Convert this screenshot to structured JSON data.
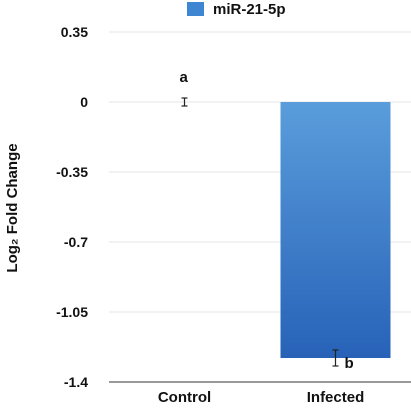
{
  "chart_data": {
    "type": "bar",
    "categories": [
      "Control",
      "Infected"
    ],
    "series": [
      {
        "name": "miR-21-5p",
        "values": [
          0,
          -1.28
        ],
        "error": [
          0.02,
          0.04
        ],
        "significance": [
          "a",
          "b"
        ]
      }
    ],
    "ylabel": "Log₂ Fold Change",
    "xlabel": "",
    "ylim": [
      -1.4,
      0.35
    ],
    "yticks": [
      0.35,
      0,
      -0.35,
      -0.7,
      -1.05,
      -1.4
    ],
    "ytick_labels": [
      "0.35",
      "0",
      "-0.35",
      "-0.7",
      "-1.05",
      "-1.4"
    ],
    "grid": true,
    "legend": "top",
    "colors": {
      "bar_top": "#5a9ddb",
      "bar_bottom": "#2762b8",
      "legend_swatch": "#3f86d2",
      "grid": "#e6e6e6",
      "axis": "#333333",
      "text": "#111111"
    }
  }
}
